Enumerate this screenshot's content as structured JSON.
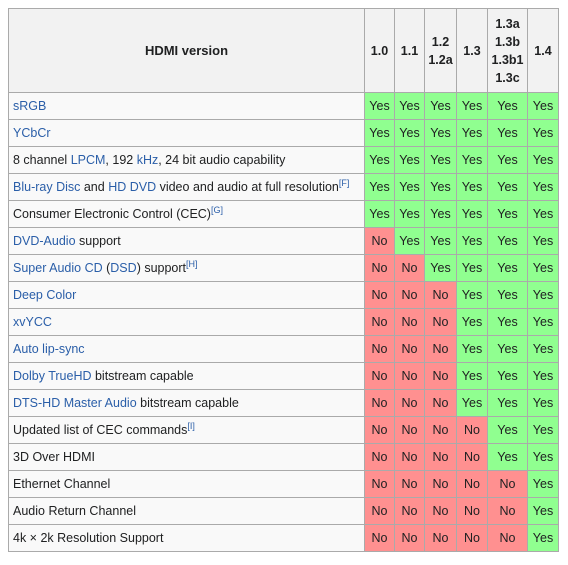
{
  "header": {
    "title": "HDMI version",
    "versions": [
      [
        "1.0"
      ],
      [
        "1.1"
      ],
      [
        "1.2",
        "1.2a"
      ],
      [
        "1.3"
      ],
      [
        "1.3a",
        "1.3b",
        "1.3b1",
        "1.3c"
      ],
      [
        "1.4"
      ]
    ]
  },
  "rows": [
    {
      "parts": [
        {
          "t": "sRGB",
          "link": true
        }
      ],
      "values": [
        "Yes",
        "Yes",
        "Yes",
        "Yes",
        "Yes",
        "Yes"
      ]
    },
    {
      "parts": [
        {
          "t": "YCbCr",
          "link": true
        }
      ],
      "values": [
        "Yes",
        "Yes",
        "Yes",
        "Yes",
        "Yes",
        "Yes"
      ]
    },
    {
      "parts": [
        {
          "t": "8 channel "
        },
        {
          "t": "LPCM",
          "link": true
        },
        {
          "t": ", 192 "
        },
        {
          "t": "kHz",
          "link": true
        },
        {
          "t": ", 24 bit audio capability"
        }
      ],
      "values": [
        "Yes",
        "Yes",
        "Yes",
        "Yes",
        "Yes",
        "Yes"
      ]
    },
    {
      "parts": [
        {
          "t": "Blu-ray Disc",
          "link": true
        },
        {
          "t": " and "
        },
        {
          "t": "HD DVD",
          "link": true
        },
        {
          "t": " video and audio at full resolution"
        },
        {
          "t": "[F]",
          "sup": true
        }
      ],
      "values": [
        "Yes",
        "Yes",
        "Yes",
        "Yes",
        "Yes",
        "Yes"
      ]
    },
    {
      "parts": [
        {
          "t": "Consumer Electronic Control (CEC)"
        },
        {
          "t": "[G]",
          "sup": true
        }
      ],
      "values": [
        "Yes",
        "Yes",
        "Yes",
        "Yes",
        "Yes",
        "Yes"
      ]
    },
    {
      "parts": [
        {
          "t": "DVD-Audio",
          "link": true
        },
        {
          "t": " support"
        }
      ],
      "values": [
        "No",
        "Yes",
        "Yes",
        "Yes",
        "Yes",
        "Yes"
      ]
    },
    {
      "parts": [
        {
          "t": "Super Audio CD",
          "link": true
        },
        {
          "t": " ("
        },
        {
          "t": "DSD",
          "link": true
        },
        {
          "t": ") support"
        },
        {
          "t": "[H]",
          "sup": true
        }
      ],
      "values": [
        "No",
        "No",
        "Yes",
        "Yes",
        "Yes",
        "Yes"
      ]
    },
    {
      "parts": [
        {
          "t": "Deep Color",
          "link": true
        }
      ],
      "values": [
        "No",
        "No",
        "No",
        "Yes",
        "Yes",
        "Yes"
      ]
    },
    {
      "parts": [
        {
          "t": "xvYCC",
          "link": true
        }
      ],
      "values": [
        "No",
        "No",
        "No",
        "Yes",
        "Yes",
        "Yes"
      ]
    },
    {
      "parts": [
        {
          "t": "Auto lip-sync",
          "link": true
        }
      ],
      "values": [
        "No",
        "No",
        "No",
        "Yes",
        "Yes",
        "Yes"
      ]
    },
    {
      "parts": [
        {
          "t": "Dolby TrueHD",
          "link": true
        },
        {
          "t": " bitstream capable"
        }
      ],
      "values": [
        "No",
        "No",
        "No",
        "Yes",
        "Yes",
        "Yes"
      ]
    },
    {
      "parts": [
        {
          "t": "DTS-HD Master Audio",
          "link": true
        },
        {
          "t": " bitstream capable"
        }
      ],
      "values": [
        "No",
        "No",
        "No",
        "Yes",
        "Yes",
        "Yes"
      ]
    },
    {
      "parts": [
        {
          "t": "Updated list of CEC commands"
        },
        {
          "t": "[I]",
          "sup": true
        }
      ],
      "values": [
        "No",
        "No",
        "No",
        "No",
        "Yes",
        "Yes"
      ]
    },
    {
      "parts": [
        {
          "t": "3D Over HDMI"
        }
      ],
      "values": [
        "No",
        "No",
        "No",
        "No",
        "Yes",
        "Yes"
      ]
    },
    {
      "parts": [
        {
          "t": "Ethernet Channel"
        }
      ],
      "values": [
        "No",
        "No",
        "No",
        "No",
        "No",
        "Yes"
      ]
    },
    {
      "parts": [
        {
          "t": "Audio Return Channel"
        }
      ],
      "values": [
        "No",
        "No",
        "No",
        "No",
        "No",
        "Yes"
      ]
    },
    {
      "parts": [
        {
          "t": "4k × 2k Resolution Support"
        }
      ],
      "values": [
        "No",
        "No",
        "No",
        "No",
        "No",
        "Yes"
      ]
    }
  ],
  "colors": {
    "yes": "#90ff90",
    "no": "#ff9090",
    "link": "#2a5ea8",
    "header_bg": "#f2f2f2"
  }
}
